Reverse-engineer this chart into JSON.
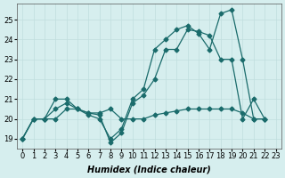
{
  "bg_color": "#d6eeee",
  "grid_color": "#c0dede",
  "line_color": "#1a6b6b",
  "xlabel": "Humidex (Indice chaleur)",
  "xlim": [
    -0.5,
    23.5
  ],
  "ylim": [
    18.5,
    25.8
  ],
  "xticks": [
    0,
    1,
    2,
    3,
    4,
    5,
    6,
    7,
    8,
    9,
    10,
    11,
    12,
    13,
    14,
    15,
    16,
    17,
    18,
    19,
    20,
    21,
    22,
    23
  ],
  "yticks": [
    19,
    20,
    21,
    22,
    23,
    24,
    25
  ],
  "series": [
    {
      "x": [
        0,
        1,
        2,
        3,
        4,
        5,
        6,
        7,
        8,
        9,
        10,
        11,
        12,
        13,
        14,
        15,
        16,
        17,
        18,
        19,
        20,
        21,
        22
      ],
      "y": [
        19,
        20,
        20,
        21,
        21,
        20.5,
        20.2,
        20,
        19,
        19.5,
        21,
        21.5,
        23.5,
        24,
        24.5,
        24.7,
        24.3,
        23.5,
        25.3,
        25.5,
        23,
        20,
        20
      ]
    },
    {
      "x": [
        0,
        1,
        2,
        3,
        4,
        5,
        6,
        7,
        8,
        9,
        10,
        11,
        12,
        13,
        14,
        15,
        16,
        17,
        18,
        19,
        20,
        21,
        22
      ],
      "y": [
        19,
        20,
        20,
        20.5,
        20.8,
        20.5,
        20.3,
        20.2,
        18.8,
        19.3,
        20.8,
        21.2,
        22,
        23.5,
        23.5,
        24.5,
        24.4,
        24.2,
        23,
        23,
        20,
        21,
        20
      ]
    },
    {
      "x": [
        0,
        1,
        2,
        3,
        4,
        5,
        6,
        7,
        8,
        9,
        10,
        11,
        12,
        13,
        14,
        15,
        16,
        17,
        18,
        19,
        20,
        21,
        22
      ],
      "y": [
        19,
        20,
        20,
        20,
        20.5,
        20.5,
        20.3,
        20.3,
        20.5,
        20,
        20,
        20,
        20.2,
        20.3,
        20.4,
        20.5,
        20.5,
        20.5,
        20.5,
        20.5,
        20.3,
        20,
        20
      ]
    }
  ]
}
